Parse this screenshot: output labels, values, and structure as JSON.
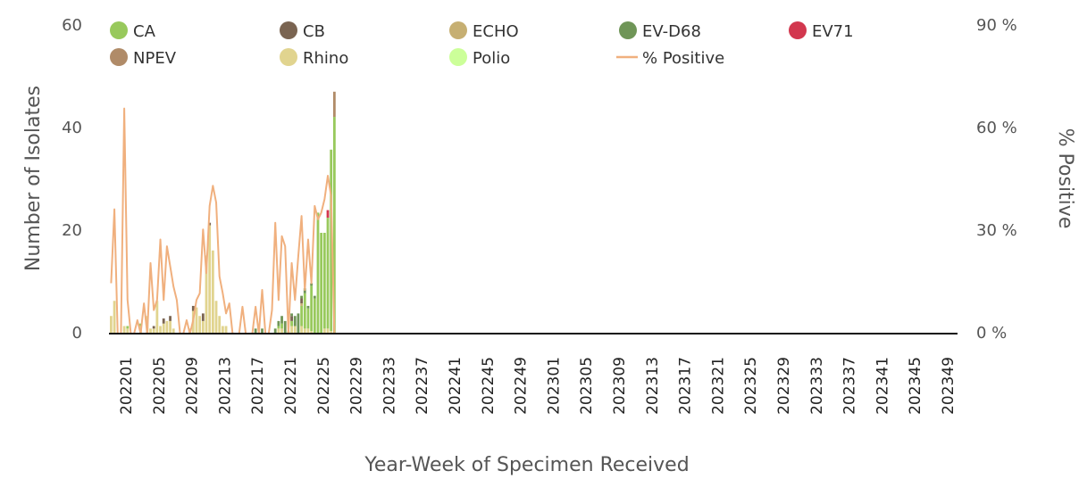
{
  "chart_data": {
    "type": "bar",
    "xlabel": "Year-Week of Specimen Received",
    "ylabel": "Number of Isolates",
    "y2label": "% Positive",
    "ylim": [
      0,
      60
    ],
    "y2lim": [
      0,
      90
    ],
    "yticks": [
      "0",
      "20",
      "40",
      "60"
    ],
    "y2ticks": [
      "0 %",
      "30 %",
      "60 %",
      "90 %"
    ],
    "x_tick_labels": [
      "202201",
      "202205",
      "202209",
      "202213",
      "202217",
      "202221",
      "202225",
      "202229",
      "202233",
      "202237",
      "202241",
      "202245",
      "202249",
      "202301",
      "202305",
      "202309",
      "202313",
      "202317",
      "202321",
      "202325",
      "202329",
      "202333",
      "202337",
      "202341",
      "202345",
      "202349"
    ],
    "legend": [
      {
        "key": "CA",
        "label": "CA",
        "color": "#98c95c",
        "shape": "circle"
      },
      {
        "key": "CB",
        "label": "CB",
        "color": "#7a6451",
        "shape": "circle"
      },
      {
        "key": "ECHO",
        "label": "ECHO",
        "color": "#c6af72",
        "shape": "circle"
      },
      {
        "key": "EVD68",
        "label": "EV-D68",
        "color": "#6f9557",
        "shape": "circle"
      },
      {
        "key": "EV71",
        "label": "EV71",
        "color": "#d2374e",
        "shape": "circle"
      },
      {
        "key": "NPEV",
        "label": "NPEV",
        "color": "#b08b68",
        "shape": "circle"
      },
      {
        "key": "Rhino",
        "label": "Rhino",
        "color": "#e1d48f",
        "shape": "circle"
      },
      {
        "key": "Polio",
        "label": "Polio",
        "color": "#ccff99",
        "shape": "circle"
      },
      {
        "key": "pct",
        "label": "% Positive",
        "color": "#f0b07e",
        "shape": "line"
      }
    ],
    "weeks": [
      "202201",
      "202202",
      "202203",
      "202204",
      "202205",
      "202206",
      "202207",
      "202208",
      "202209",
      "202210",
      "202211",
      "202212",
      "202213",
      "202214",
      "202215",
      "202216",
      "202217",
      "202218",
      "202219",
      "202220",
      "202221",
      "202222",
      "202223",
      "202224",
      "202225",
      "202226",
      "202227",
      "202228",
      "202229",
      "202230",
      "202231",
      "202232",
      "202233",
      "202234",
      "202235",
      "202236",
      "202237",
      "202238",
      "202239",
      "202240",
      "202241",
      "202242",
      "202243",
      "202244",
      "202245",
      "202246",
      "202247",
      "202248",
      "202249",
      "202250",
      "202251",
      "202252",
      "202301",
      "202302",
      "202303",
      "202304",
      "202305",
      "202306",
      "202307",
      "202308",
      "202309",
      "202310",
      "202311",
      "202312",
      "202313",
      "202314",
      "202315",
      "202316",
      "202317"
    ],
    "series": {
      "Rhino": [
        3.5,
        6.5,
        0,
        0,
        1.5,
        1,
        0,
        0,
        0,
        1.5,
        0,
        3.5,
        1,
        1,
        6.5,
        1.5,
        2,
        2.5,
        2.5,
        1,
        0,
        0,
        0,
        0,
        1,
        4.5,
        5.2,
        3.5,
        2.5,
        15.5,
        21.5,
        16.5,
        6.5,
        3.5,
        1.5,
        1.5,
        0,
        0,
        0,
        0,
        0,
        0,
        0,
        0,
        0,
        0,
        0,
        0,
        0,
        0,
        0,
        1,
        1,
        0,
        0,
        1.5,
        1.5,
        0,
        1.5,
        1,
        1,
        0.5,
        0,
        0,
        0,
        1,
        1,
        0.5,
        0
      ],
      "CA": [
        0,
        0,
        0,
        0,
        0,
        0.5,
        0,
        0,
        0,
        0.5,
        0,
        0,
        0,
        0,
        0,
        0,
        0,
        0,
        0,
        0,
        0,
        0,
        0,
        0,
        0,
        0,
        0,
        0,
        0,
        0,
        0,
        0,
        0,
        0,
        0,
        0,
        0,
        0,
        0,
        0,
        0,
        0,
        0,
        0,
        0,
        0,
        0,
        0,
        0,
        0,
        0,
        0.5,
        1,
        0,
        0.5,
        1,
        0,
        0,
        4,
        7,
        4,
        9,
        7,
        24,
        20,
        19,
        22,
        36,
        43
      ],
      "CB": [
        0,
        0,
        0,
        0,
        0,
        0,
        0,
        0,
        0,
        0,
        0,
        0,
        0,
        0.5,
        0,
        0,
        1,
        0,
        1,
        0,
        0,
        0,
        0,
        0,
        0,
        1,
        0,
        0,
        1.5,
        0,
        0.5,
        0,
        0,
        0,
        0,
        0,
        0,
        0,
        0,
        0,
        0,
        0,
        0,
        0,
        0,
        0,
        0,
        0,
        0,
        0,
        0,
        0,
        0,
        0,
        0,
        1,
        0,
        0,
        1,
        0,
        0,
        0,
        0,
        0,
        0,
        0,
        0,
        0,
        0
      ],
      "ECHO": [
        0,
        0,
        0,
        0,
        0,
        0,
        0,
        0,
        0,
        0,
        0,
        0,
        0,
        0,
        0,
        0,
        0,
        0,
        0,
        0,
        0,
        0,
        0,
        0,
        0,
        0,
        0,
        0,
        0,
        0,
        0,
        0,
        0,
        0,
        0,
        0,
        0,
        0,
        0,
        0,
        0,
        0,
        0,
        0,
        0,
        0,
        0,
        0,
        0,
        0,
        0,
        0,
        0,
        0,
        0,
        0,
        0,
        0,
        0.5,
        0,
        0,
        0,
        0,
        0,
        0,
        0,
        0,
        0,
        0
      ],
      "EVD68": [
        0,
        0,
        0,
        0,
        0,
        0,
        0,
        0,
        0,
        0,
        0,
        0,
        0,
        0,
        0,
        0,
        0,
        0,
        0,
        0,
        0,
        0,
        0,
        0,
        0,
        0,
        0,
        0,
        0,
        0,
        0,
        0,
        0,
        0,
        0,
        0,
        0,
        0,
        0,
        0,
        0,
        0,
        0,
        0,
        1,
        0,
        1,
        0,
        0,
        0,
        1,
        1,
        1.5,
        2.5,
        0,
        0.5,
        2,
        4,
        0.5,
        1,
        0.5,
        0.5,
        0.5,
        0,
        0,
        0,
        0,
        0,
        0
      ],
      "EV71": [
        0,
        0,
        0,
        0,
        0,
        0,
        0,
        0,
        0,
        0,
        0,
        0,
        0,
        0,
        0,
        0,
        0,
        0,
        0,
        0,
        0,
        0,
        0,
        0,
        0,
        0,
        0,
        0,
        0,
        0,
        0,
        0,
        0,
        0,
        0,
        0,
        0,
        0,
        0,
        0,
        0,
        0,
        0,
        0,
        0,
        0,
        0,
        0,
        0,
        0,
        0,
        0,
        0,
        0,
        0,
        0,
        0,
        0,
        0,
        0,
        0,
        0,
        0,
        0,
        0,
        0,
        1.5,
        0,
        0
      ],
      "NPEV": [
        0,
        0,
        0,
        0,
        0,
        0,
        0,
        0,
        0,
        0,
        0,
        0,
        0,
        0,
        0,
        0,
        0,
        0,
        0,
        0,
        0,
        0,
        0,
        0,
        0,
        0,
        0,
        0,
        0,
        0,
        0,
        0,
        0,
        0,
        0,
        0,
        0,
        0,
        0,
        0,
        0,
        0,
        0,
        0,
        0,
        0,
        0,
        0,
        0,
        0,
        0,
        0,
        0,
        0,
        0,
        0,
        0,
        0,
        0,
        0,
        0,
        0,
        0,
        0,
        0,
        0,
        0,
        0,
        5
      ],
      "Polio": [
        0,
        0,
        0,
        0,
        0,
        0,
        0,
        0,
        0,
        0,
        0,
        0,
        0,
        0,
        0,
        0,
        0,
        0,
        0,
        0,
        0,
        0,
        0,
        0,
        0,
        0,
        0,
        0,
        0,
        0,
        0,
        0,
        0,
        0,
        0,
        0,
        0,
        0,
        0,
        0,
        0,
        0,
        0,
        0,
        0,
        0,
        0,
        0,
        0,
        0,
        0,
        0,
        0,
        0,
        0,
        0,
        0,
        0,
        0,
        0,
        0,
        0,
        0,
        0,
        0,
        0,
        0,
        0,
        0
      ]
    },
    "pct_positive": [
      15,
      37,
      0,
      0,
      67,
      10,
      0,
      0,
      4,
      0,
      9,
      0,
      21,
      7,
      10,
      28,
      10,
      26,
      20,
      14,
      10,
      0,
      0,
      4,
      0,
      4,
      10,
      12,
      31,
      18,
      38,
      44,
      39,
      17,
      12,
      6,
      9,
      0,
      0,
      0,
      8,
      0,
      0,
      0,
      8,
      0,
      13,
      0,
      0,
      7,
      33,
      10,
      29,
      26,
      0,
      21,
      10,
      23,
      35,
      13,
      28,
      15,
      38,
      34,
      36,
      40,
      47,
      41,
      0
    ]
  }
}
